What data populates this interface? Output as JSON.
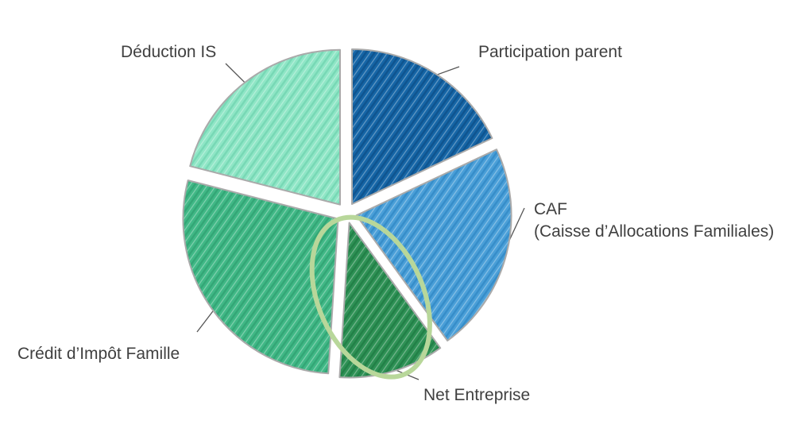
{
  "chart_data": {
    "type": "pie",
    "slices": [
      {
        "label": "Participation parent",
        "value": 18,
        "color": "#1565a6",
        "hatch": "#0d4f86"
      },
      {
        "label": "CAF",
        "sublabel": "(Caisse d’Allocations Familiales)",
        "value": 22,
        "color": "#4a9fd8",
        "hatch": "#2f86c4"
      },
      {
        "label": "Net Entreprise",
        "value": 11,
        "color": "#2e9155",
        "hatch": "#1d7a42",
        "highlighted": true
      },
      {
        "label": "Crédit d’Impôt Famille",
        "value": 28,
        "color": "#40b886",
        "hatch": "#2ea070"
      },
      {
        "label": "Déduction IS",
        "value": 21,
        "color": "#8fe6c6",
        "hatch": "#6fd3ae"
      }
    ],
    "highlight_color": "#b8d79a",
    "outline_color": "#aaaaaa",
    "legend": "none",
    "title": ""
  }
}
